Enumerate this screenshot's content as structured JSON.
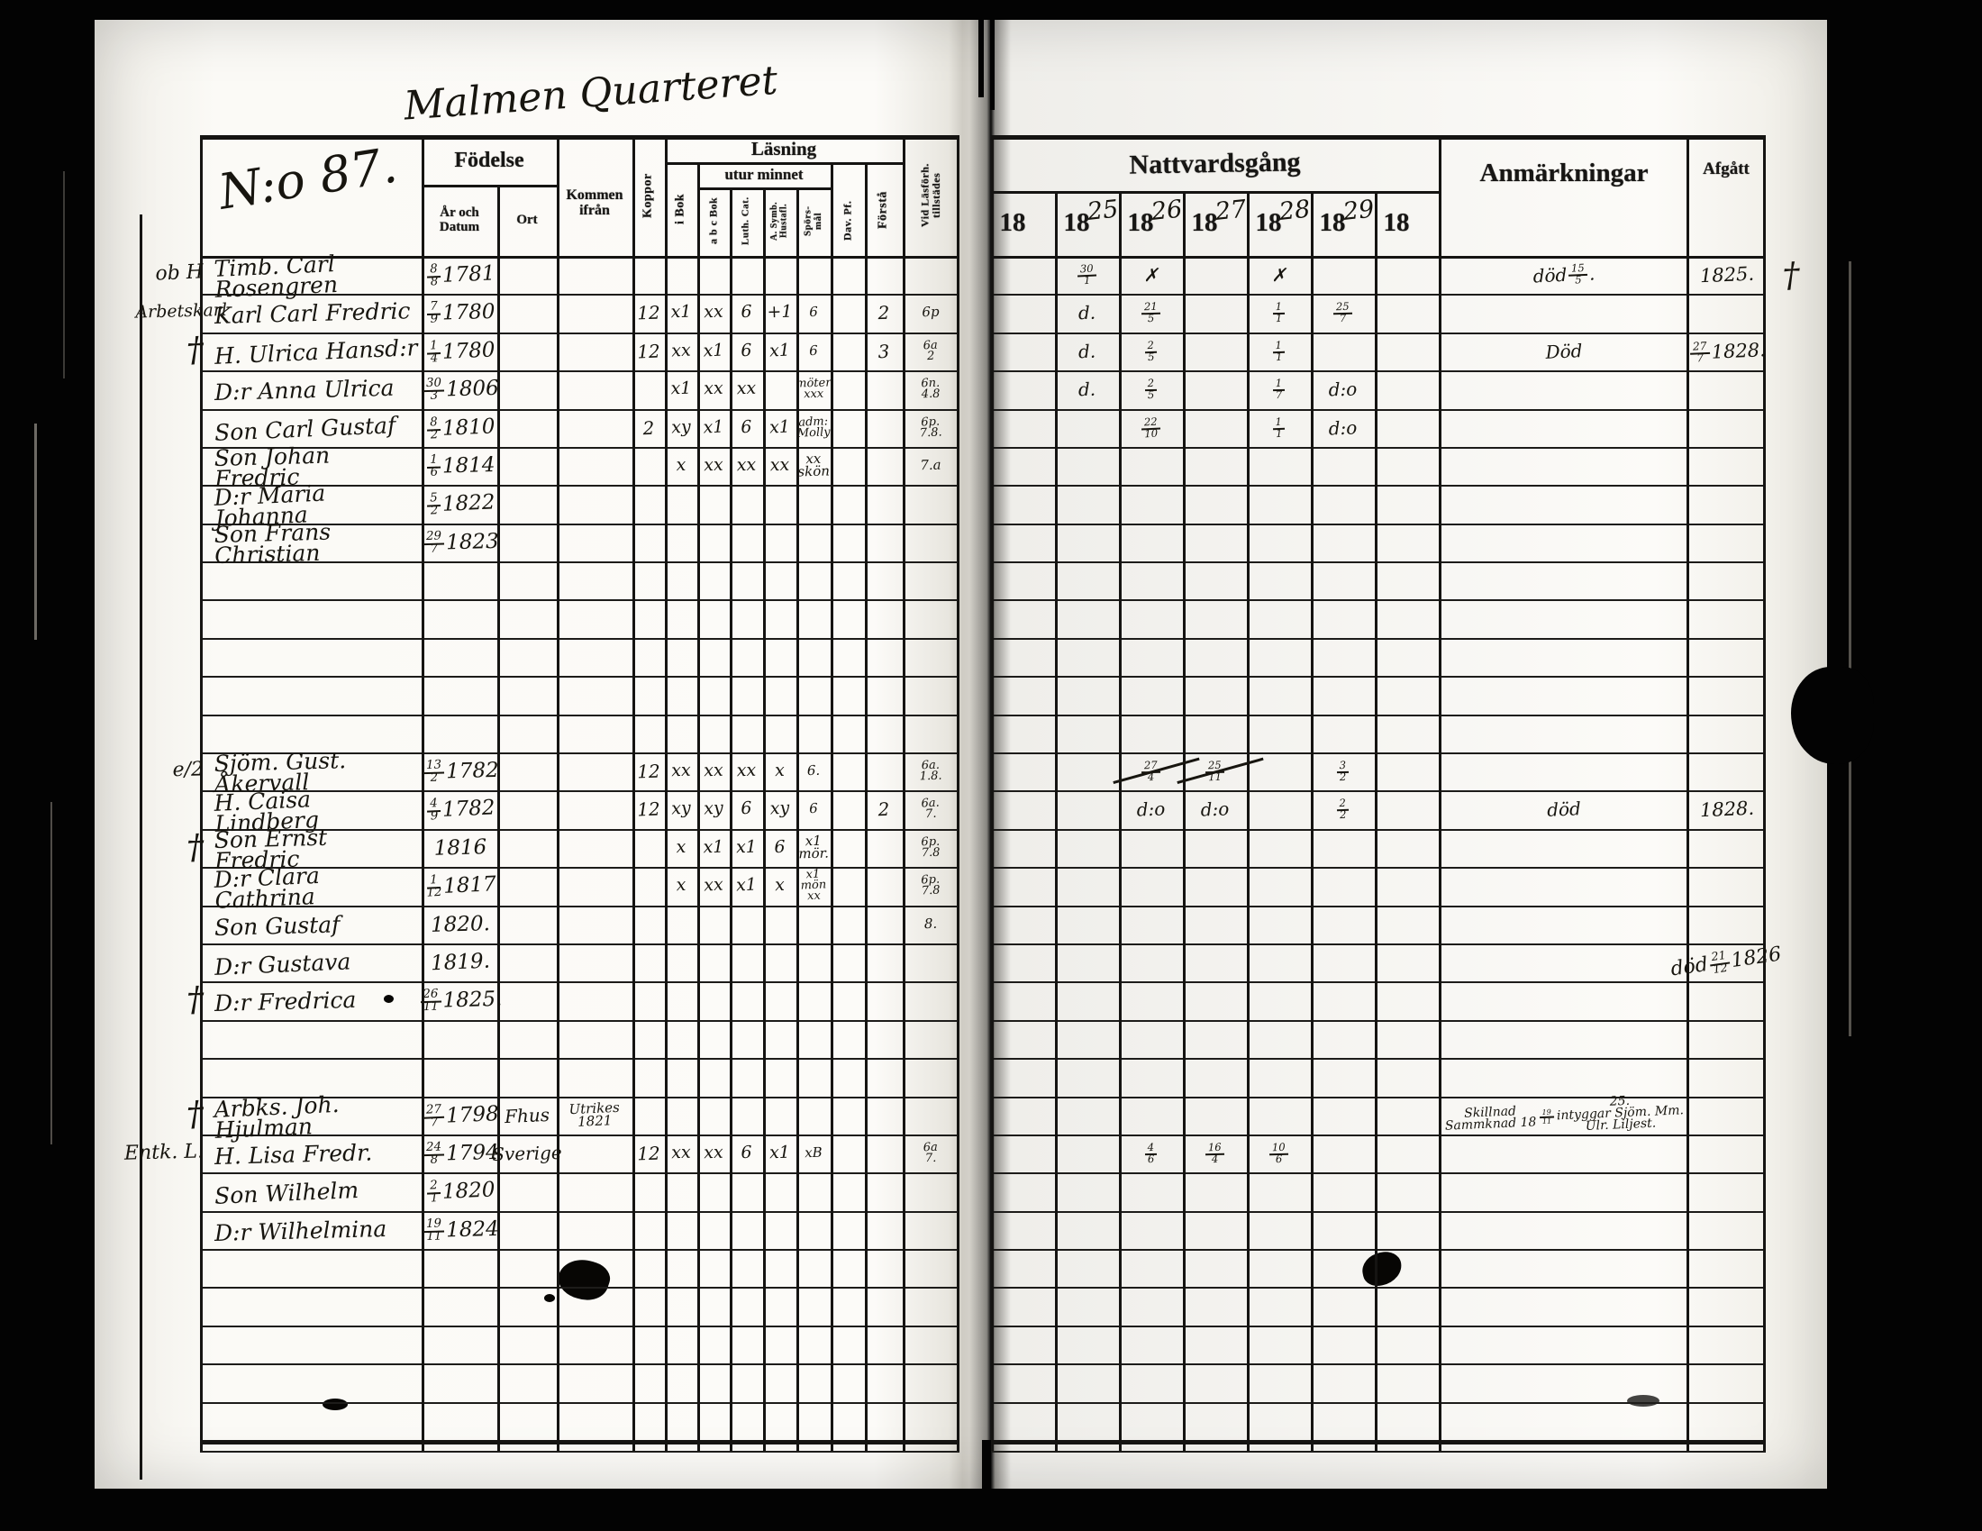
{
  "scan": {
    "district_title": "Malmen Quarteret",
    "household_no": "N:o 87.",
    "cross_symbol": "†"
  },
  "left_table": {
    "headers": {
      "fodelse": "Födelse",
      "ar_och_datum": "År och\nDatum",
      "ort": "Ort",
      "kommen_ifran": "Kommen\nifrån",
      "koppor": "Koppor",
      "lasning": "Läsning",
      "utur_minnet": "utur minnet",
      "i_bok": "i Bok",
      "abc_bok": "a b c Bok",
      "luth_cat": "Luth. Cat.",
      "a_symb": "A. Symb.\nHustafl.",
      "sporsmal": "Spörs-\nmål",
      "dav_pf": "Dav. Pf.",
      "forsta": "Förstå",
      "vid_lasforhor": "Vid Läsförh.\ntillstädes"
    }
  },
  "right_table": {
    "nattvardsgang": "Nattvardsgång",
    "years": [
      {
        "printed": "18",
        "hw": ""
      },
      {
        "printed": "18",
        "hw": "25"
      },
      {
        "printed": "18",
        "hw": "26"
      },
      {
        "printed": "18",
        "hw": "27"
      },
      {
        "printed": "18",
        "hw": "28"
      },
      {
        "printed": "18",
        "hw": "29"
      },
      {
        "printed": "18",
        "hw": ""
      }
    ],
    "anmarkningar": "Anmärkningar",
    "afgatt": "Afgått"
  },
  "rows": [
    {
      "r": 0,
      "margin": "ob H",
      "name": "Timb. Carl Rosengren",
      "born": "8/8 1781",
      "communion": {
        "1": "30/1",
        "2": "✗",
        "4": "✗"
      },
      "remark": "död 15/5.",
      "afgatt": "1825.",
      "cross_after": true
    },
    {
      "r": 1,
      "margin": "Arbetskarl",
      "name": "Karl Carl Fredric",
      "born": "7/9 1780",
      "reading": {
        "koppor": "12",
        "i_bok": "x1",
        "abc": "xx",
        "luth": "6",
        "asym": "+1",
        "spors": "6",
        "forsta": "2",
        "vid": "6p"
      },
      "communion": {
        "1": "d.",
        "2": "21/5",
        "4": "1/1",
        "5": "25/7"
      }
    },
    {
      "r": 2,
      "margin": "†",
      "name": "H. Ulrica Hansd:r",
      "born": "1/4 1780",
      "reading": {
        "koppor": "12",
        "i_bok": "xx",
        "abc": "x1",
        "luth": "6",
        "asym": "x1",
        "spors": "6",
        "forsta": "3",
        "vid": "6a\n2"
      },
      "communion": {
        "1": "d.",
        "2": "2/5",
        "4": "1/1"
      },
      "remark": "Död",
      "afgatt": "27/7 1828."
    },
    {
      "r": 3,
      "name": "D:r Anna Ulrica",
      "born": "30/3 1806",
      "reading": {
        "i_bok": "x1",
        "abc": "xx",
        "luth": "xx",
        "spors": "möter\nxxx",
        "vid": "6n.\n4.8"
      },
      "communion": {
        "1": "d.",
        "2": "2/5",
        "4": "1/7",
        "5": "d:o"
      }
    },
    {
      "r": 4,
      "name": "Son Carl Gustaf",
      "born": "8/2 1810",
      "reading": {
        "koppor": "2",
        "i_bok": "xy",
        "abc": "x1",
        "luth": "6",
        "asym": "x1",
        "spors": "adm:\nMolly",
        "vid": "6p.\n7.8."
      },
      "communion": {
        "2": "22/10",
        "4": "1/1",
        "5": "d:o"
      }
    },
    {
      "r": 5,
      "name": "Son Johan Fredric",
      "born": "1/6 1814",
      "reading": {
        "i_bok": "x",
        "abc": "xx",
        "luth": "xx",
        "asym": "xx",
        "spors": "xx skön",
        "vid": "7.a"
      }
    },
    {
      "r": 6,
      "name": "D:r Maria Johanna",
      "born": "5/2 1822"
    },
    {
      "r": 7,
      "name": "Son Frans Christian",
      "born": "29/7 1823"
    },
    {
      "r": 13,
      "margin": "e/2",
      "name": "Sjöm. Gust. Åkervall",
      "born": "13/2 1782",
      "reading": {
        "koppor": "12",
        "i_bok": "xx",
        "abc": "xx",
        "luth": "xx",
        "asym": "x",
        "spors": "6.",
        "vid": "6a.\n1.8."
      },
      "communion": {
        "2": "27/4",
        "3": "25/11",
        "5": "3/2"
      },
      "struck": [
        2,
        3
      ]
    },
    {
      "r": 14,
      "name": "H. Caisa Lindberg",
      "born": "4/9 1782",
      "reading": {
        "koppor": "12",
        "i_bok": "xy",
        "abc": "xy",
        "luth": "6",
        "asym": "xy",
        "spors": "6",
        "forsta": "2",
        "vid": "6a.\n7."
      },
      "communion": {
        "2": "d:o",
        "3": "d:o",
        "5": "2/2"
      },
      "remark": "död",
      "afgatt": "1828."
    },
    {
      "r": 15,
      "margin": "†",
      "name": "Son Ernst Fredric",
      "born": "1816",
      "reading": {
        "i_bok": "x",
        "abc": "x1",
        "luth": "x1",
        "asym": "6",
        "spors": "x1 mör.",
        "vid": "6p.\n7.8"
      }
    },
    {
      "r": 16,
      "name": "D:r Clara Cathrina",
      "born": "1/12 1817",
      "reading": {
        "i_bok": "x",
        "abc": "xx",
        "luth": "x1",
        "asym": "x",
        "spors": "x1 mön\nxx",
        "vid": "6p.\n7.8"
      }
    },
    {
      "r": 17,
      "name": "Son Gustaf",
      "born": "1820.",
      "reading": {
        "vid": "8."
      }
    },
    {
      "r": 18,
      "name": "D:r Gustava",
      "born": "1819.",
      "afgatt": "död\n21/12 1826"
    },
    {
      "r": 19,
      "margin": "†",
      "name": "D:r Fredrica",
      "born": "26/11 1825."
    },
    {
      "r": 22,
      "margin": "†",
      "name": "Arbks. Joh. Hjulman",
      "born": "27/7 1798",
      "ort": "Fhus",
      "kommen": "Utrikes\n1821",
      "remark": "Skillnad Sammknad 18 19/11 25.\nintyggar Sjöm. Mm. Ulr. Liljest."
    },
    {
      "r": 23,
      "margin": "Entk. L.",
      "name": "H. Lisa Fredr.",
      "born": "24/8 1794",
      "ort": "Sverige",
      "reading": {
        "koppor": "12",
        "i_bok": "xx",
        "abc": "xx",
        "luth": "6",
        "asym": "x1",
        "spors": "xB",
        "vid": "6a\n7."
      },
      "communion": {
        "2": "4/6",
        "3": "16/4",
        "4": "10/6"
      }
    },
    {
      "r": 24,
      "name": "Son Wilhelm",
      "born": "2/1 1820"
    },
    {
      "r": 25,
      "name": "D:r Wilhelmina",
      "born": "19/11 1824"
    }
  ]
}
